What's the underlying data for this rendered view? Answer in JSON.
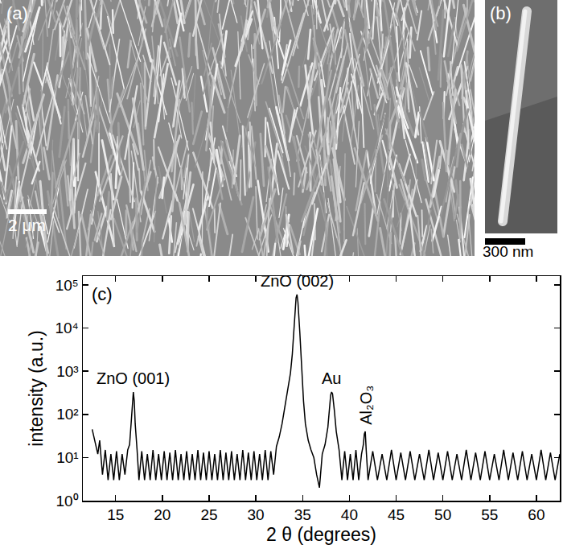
{
  "chart_data": {
    "type": "line",
    "panel_label": "(c)",
    "x_label": "2 θ (degrees)",
    "y_label": "intensity (a.u.)",
    "color": "#000000",
    "log": "y",
    "grid": false,
    "x": [
      12.5,
      12.7,
      12.9,
      13.1,
      13.3,
      13.6,
      13.9,
      14.2,
      14.5,
      14.8,
      15.1,
      15.4,
      15.7,
      16.0,
      16.3,
      16.5,
      16.7,
      16.8,
      16.9,
      17.0,
      17.1,
      17.3,
      17.5,
      17.8,
      18.1,
      18.4,
      18.7,
      19.0,
      19.3,
      19.6,
      19.9,
      20.2,
      20.5,
      20.8,
      21.1,
      21.4,
      21.7,
      22.0,
      22.3,
      22.6,
      22.9,
      23.2,
      23.5,
      23.8,
      24.1,
      24.4,
      24.7,
      25.0,
      25.3,
      25.6,
      25.9,
      26.2,
      26.5,
      26.8,
      27.1,
      27.4,
      27.7,
      28.0,
      28.3,
      28.6,
      28.9,
      29.2,
      29.5,
      29.8,
      30.1,
      30.4,
      30.7,
      31.0,
      31.3,
      31.6,
      31.9,
      32.2,
      32.5,
      32.8,
      33.1,
      33.4,
      33.7,
      33.9,
      34.1,
      34.3,
      34.4,
      34.5,
      34.7,
      34.9,
      35.1,
      35.3,
      35.6,
      35.9,
      36.2,
      36.5,
      36.8,
      37.1,
      37.4,
      37.7,
      37.9,
      38.0,
      38.1,
      38.2,
      38.4,
      38.6,
      38.9,
      39.2,
      39.5,
      39.8,
      40.1,
      40.4,
      40.7,
      41.0,
      41.3,
      41.5,
      41.6,
      41.7,
      41.8,
      42.0,
      42.5,
      43.0,
      43.5,
      44.0,
      44.5,
      45.0,
      45.5,
      46.0,
      46.5,
      47.0,
      47.5,
      48.0,
      48.5,
      49.0,
      49.5,
      50.0,
      50.5,
      51.0,
      51.5,
      52.0,
      52.5,
      53.0,
      53.5,
      54.0,
      54.5,
      55.0,
      55.5,
      56.0,
      56.5,
      57.0,
      57.5,
      58.0,
      58.5,
      59.0,
      59.5,
      60.0,
      60.5,
      61.0,
      61.5,
      62.0,
      62.5
    ],
    "values": [
      45,
      30,
      20,
      12,
      25,
      4,
      15,
      3,
      12,
      3,
      14,
      3,
      12,
      4,
      15,
      20,
      80,
      220,
      330,
      200,
      60,
      15,
      3,
      14,
      3,
      12,
      3,
      15,
      3,
      12,
      3,
      14,
      3,
      13,
      3,
      15,
      3,
      12,
      3,
      14,
      3,
      12,
      3,
      15,
      3,
      13,
      3,
      14,
      3,
      12,
      3,
      15,
      3,
      13,
      3,
      14,
      3,
      12,
      3,
      15,
      3,
      13,
      3,
      14,
      3,
      12,
      3,
      15,
      3,
      14,
      4,
      18,
      30,
      60,
      150,
      400,
      900,
      2500,
      12000,
      50000,
      60000,
      40000,
      8000,
      1200,
      200,
      60,
      25,
      15,
      10,
      4,
      2,
      12,
      20,
      50,
      150,
      280,
      330,
      300,
      120,
      40,
      15,
      3,
      14,
      3,
      12,
      3,
      15,
      3,
      12,
      20,
      35,
      40,
      15,
      3,
      14,
      3,
      12,
      3,
      15,
      3,
      13,
      3,
      14,
      3,
      12,
      3,
      15,
      3,
      13,
      3,
      14,
      3,
      12,
      3,
      15,
      3,
      13,
      3,
      14,
      3,
      12,
      3,
      15,
      3,
      13,
      3,
      14,
      3,
      12,
      3,
      15,
      3,
      13,
      3,
      12
    ],
    "xlim": [
      11.5,
      62.5
    ],
    "xticks": [
      15,
      20,
      25,
      30,
      35,
      40,
      45,
      50,
      55,
      60
    ],
    "ylim": [
      1,
      160000
    ],
    "yticks": [
      {
        "value": 1,
        "label": "10⁰"
      },
      {
        "value": 10,
        "label": "10¹"
      },
      {
        "value": 100,
        "label": "10²"
      },
      {
        "value": 1000,
        "label": "10³"
      },
      {
        "value": 10000,
        "label": "10⁴"
      },
      {
        "value": 100000,
        "label": "10⁵"
      }
    ],
    "annotations": [
      {
        "text": "ZnO (001)",
        "x": 16.9,
        "y": 330
      },
      {
        "text": "ZnO (002)",
        "x": 34.4,
        "y": 60000
      },
      {
        "text": "Au",
        "x": 38.1,
        "y": 330
      },
      {
        "text": "Al₂O₃",
        "x": 41.7,
        "y": 40
      }
    ]
  },
  "image_panels": [
    {
      "label": "(a)",
      "scale_bar": "2 μm"
    },
    {
      "label": "(b)",
      "scale_bar": "300 nm"
    }
  ]
}
